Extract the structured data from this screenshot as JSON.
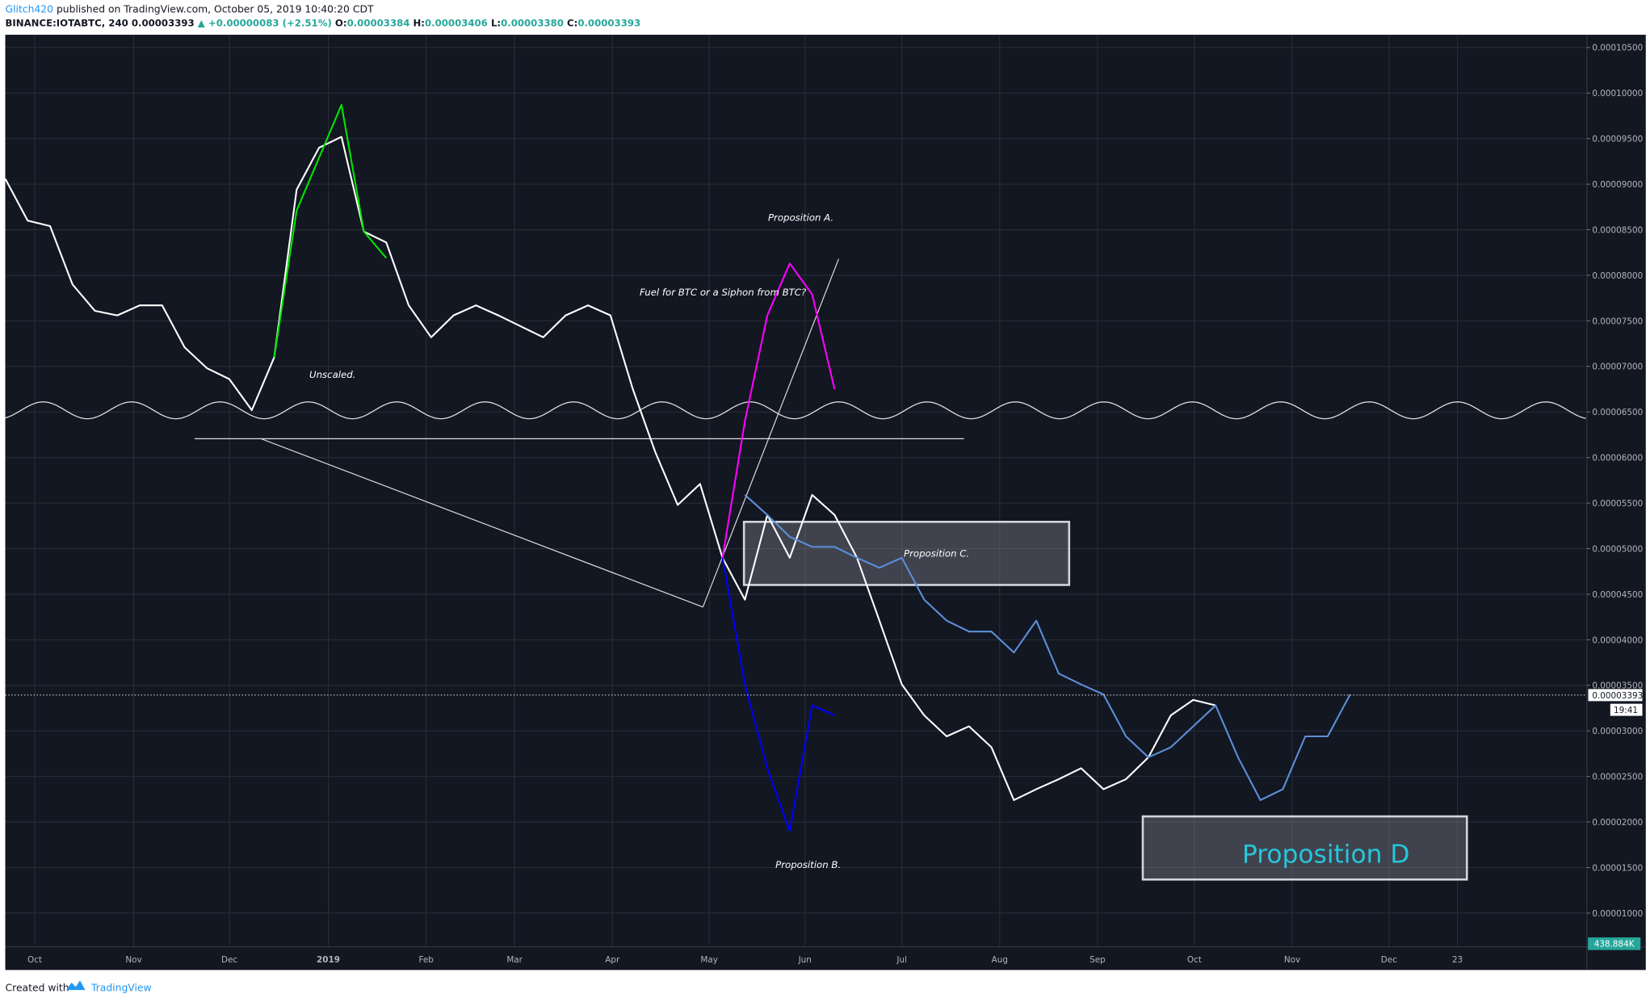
{
  "header": {
    "author": "Glitch420",
    "published": " published on TradingView.com, October 05, 2019 10:40:20 CDT",
    "symbol": "BINANCE:IOTABTC, 240",
    "price": "0.00003393",
    "change": "▲ +0.00000083 (+2.51%)",
    "o_label": "O:",
    "o": "0.00003384",
    "h_label": "H:",
    "h": "0.00003406",
    "l_label": "L:",
    "l": "0.00003380",
    "c_label": "C:",
    "c": "0.00003393"
  },
  "footer": {
    "created": "Created with",
    "brand": "TradingView"
  },
  "chart_data": {
    "type": "line",
    "x_tick_labels": [
      "Oct",
      "Nov",
      "Dec",
      "2019",
      "Feb",
      "Mar",
      "Apr",
      "May",
      "Jun",
      "Jul",
      "Aug",
      "Sep",
      "Oct",
      "Nov",
      "Dec",
      "23"
    ],
    "ylim": [
      6.3e-06,
      0.0001064
    ],
    "yticks": [
      {
        "value": 1e-05,
        "label": "0.00001000"
      },
      {
        "value": 1.5e-05,
        "label": "0.00001500"
      },
      {
        "value": 2e-05,
        "label": "0.00002000"
      },
      {
        "value": 2.5e-05,
        "label": "0.00002500"
      },
      {
        "value": 3e-05,
        "label": "0.00003000"
      },
      {
        "value": 3.5e-05,
        "label": "0.00003500"
      },
      {
        "value": 4e-05,
        "label": "0.00004000"
      },
      {
        "value": 4.5e-05,
        "label": "0.00004500"
      },
      {
        "value": 5e-05,
        "label": "0.00005000"
      },
      {
        "value": 5.5e-05,
        "label": "0.00005500"
      },
      {
        "value": 6e-05,
        "label": "0.00006000"
      },
      {
        "value": 6.5e-05,
        "label": "0.00006500"
      },
      {
        "value": 7e-05,
        "label": "0.00007000"
      },
      {
        "value": 7.5e-05,
        "label": "0.00007500"
      },
      {
        "value": 8e-05,
        "label": "0.00008000"
      },
      {
        "value": 8.5e-05,
        "label": "0.00008500"
      },
      {
        "value": 9e-05,
        "label": "0.00009000"
      },
      {
        "value": 9.5e-05,
        "label": "0.00009500"
      },
      {
        "value": 0.0001,
        "label": "0.00010000"
      },
      {
        "value": 0.000105,
        "label": "0.00010500"
      }
    ],
    "grid": true,
    "last_price": {
      "value": 3.393e-05,
      "label": "0.00003393"
    },
    "time_left": "19:41",
    "volume_label": "438.884K",
    "series": [
      {
        "color": "#ffffff",
        "values": [
          9.06e-05,
          8.6e-05,
          8.54e-05,
          7.9e-05,
          7.61e-05,
          7.56e-05,
          7.67e-05,
          7.67e-05,
          7.21e-05,
          6.98e-05,
          6.86e-05,
          6.52e-05,
          7.1e-05,
          8.94e-05,
          9.4e-05,
          9.52e-05,
          8.48e-05,
          8.36e-05,
          7.67e-05,
          7.32e-05,
          7.56e-05,
          7.67e-05,
          7.56e-05,
          7.44e-05,
          7.32e-05,
          7.56e-05,
          7.67e-05,
          7.56e-05,
          6.75e-05,
          6.06e-05,
          5.48e-05,
          5.71e-05,
          4.9e-05,
          4.44e-05,
          5.37e-05,
          4.9e-05,
          5.59e-05,
          5.37e-05,
          4.9e-05,
          4.21e-05,
          3.51e-05,
          3.17e-05,
          2.94e-05,
          3.05e-05,
          2.82e-05,
          2.24e-05,
          2.36e-05,
          2.47e-05,
          2.59e-05,
          2.36e-05,
          2.47e-05,
          2.71e-05,
          3.17e-05,
          3.34e-05,
          3.28e-05,
          null,
          null,
          null,
          null,
          null,
          null
        ]
      },
      {
        "color": "#00e600",
        "values": [
          null,
          null,
          null,
          null,
          null,
          null,
          null,
          null,
          null,
          null,
          null,
          null,
          7.1e-05,
          8.71e-05,
          9.29e-05,
          9.87e-05,
          8.48e-05,
          8.19e-05,
          null,
          null,
          null,
          null,
          null,
          null,
          null,
          null,
          null,
          null,
          null,
          null,
          null,
          null,
          null,
          null,
          null,
          null,
          null,
          null,
          null,
          null,
          null,
          null,
          null,
          null,
          null,
          null,
          null,
          null,
          null,
          null,
          null,
          null,
          null,
          null,
          null,
          null,
          null,
          null,
          null,
          null,
          null
        ]
      },
      {
        "color": "#ff00ff",
        "values": [
          null,
          null,
          null,
          null,
          null,
          null,
          null,
          null,
          null,
          null,
          null,
          null,
          null,
          null,
          null,
          null,
          null,
          null,
          null,
          null,
          null,
          null,
          null,
          null,
          null,
          null,
          null,
          null,
          null,
          null,
          null,
          null,
          4.9e-05,
          6.4e-05,
          7.56e-05,
          8.13e-05,
          7.79e-05,
          6.75e-05,
          null,
          null,
          null,
          null,
          null,
          null,
          null,
          null,
          null,
          null,
          null,
          null,
          null,
          null,
          null,
          null,
          null,
          null,
          null,
          null,
          null,
          null,
          null
        ]
      },
      {
        "color": "#0000ff",
        "values": [
          null,
          null,
          null,
          null,
          null,
          null,
          null,
          null,
          null,
          null,
          null,
          null,
          null,
          null,
          null,
          null,
          null,
          null,
          null,
          null,
          null,
          null,
          null,
          null,
          null,
          null,
          null,
          null,
          null,
          null,
          null,
          null,
          4.9e-05,
          3.51e-05,
          2.59e-05,
          1.9e-05,
          3.28e-05,
          3.17e-05,
          null,
          null,
          null,
          null,
          null,
          null,
          null,
          null,
          null,
          null,
          null,
          null,
          null,
          null,
          null,
          null,
          null,
          null,
          null,
          null,
          null,
          null,
          null
        ]
      },
      {
        "color": "#5b8fd9",
        "values": [
          null,
          null,
          null,
          null,
          null,
          null,
          null,
          null,
          null,
          null,
          null,
          null,
          null,
          null,
          null,
          null,
          null,
          null,
          null,
          null,
          null,
          null,
          null,
          null,
          null,
          null,
          null,
          null,
          null,
          null,
          null,
          null,
          null,
          5.59e-05,
          5.37e-05,
          5.13e-05,
          5.02e-05,
          5.02e-05,
          4.9e-05,
          4.79e-05,
          4.9e-05,
          4.44e-05,
          4.21e-05,
          4.09e-05,
          4.09e-05,
          3.86e-05,
          4.21e-05,
          3.63e-05,
          3.51e-05,
          3.4e-05,
          2.94e-05,
          2.71e-05,
          2.82e-05,
          3.05e-05,
          3.28e-05,
          2.71e-05,
          2.24e-05,
          2.36e-05,
          2.94e-05,
          2.94e-05,
          3.4e-05
        ]
      }
    ],
    "annotations": [
      "Proposition A.",
      "Fuel for BTC or a Siphon from BTC?",
      "Unscaled.",
      "Proposition C.",
      "Proposition B.",
      "Proposition D"
    ]
  }
}
